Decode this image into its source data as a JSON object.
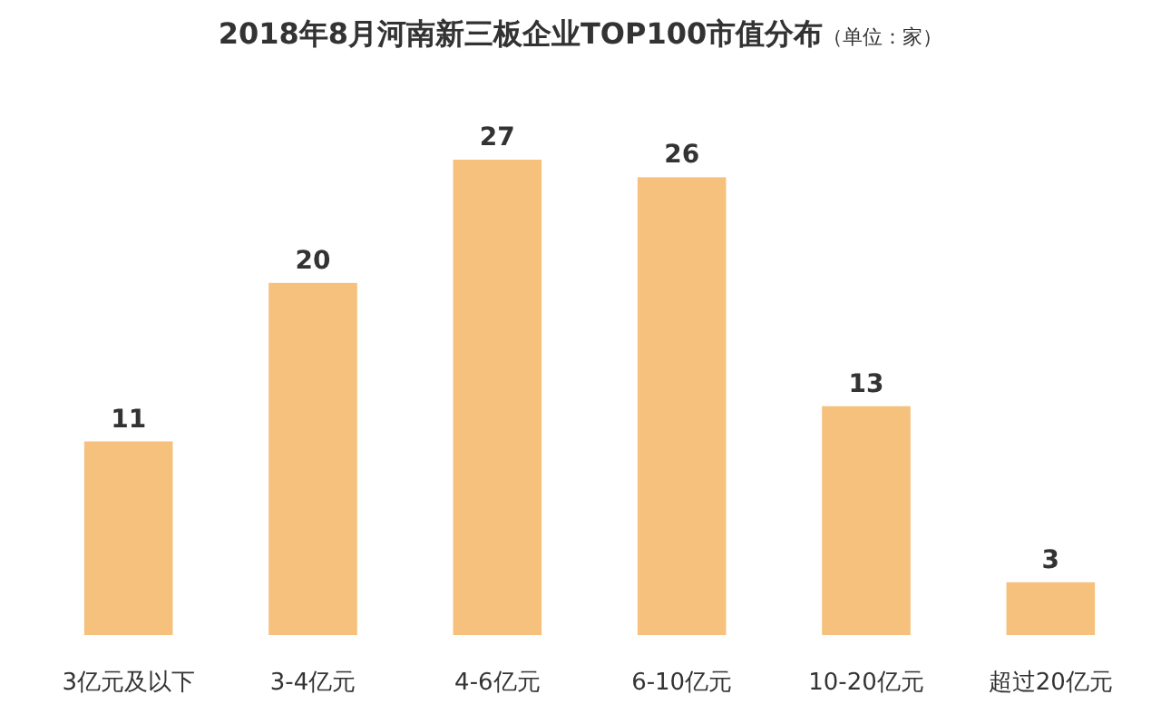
{
  "chart_data": {
    "type": "bar",
    "title": "2018年8月河南新三板企业TOP100市值分布",
    "subtitle": "（单位：家）",
    "categories": [
      "3亿元及以下",
      "3-4亿元",
      "4-6亿元",
      "6-10亿元",
      "10-20亿元",
      "超过20亿元"
    ],
    "values": [
      11,
      20,
      27,
      26,
      13,
      3
    ],
    "color": "#f5c17d",
    "data_labels": true
  }
}
